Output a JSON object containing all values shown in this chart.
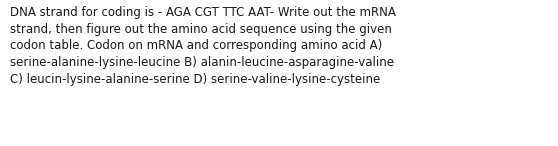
{
  "text": "DNA strand for coding is - AGA CGT TTC AAT- Write out the mRNA\nstrand, then figure out the amino acid sequence using the given\ncodon table. Codon on mRNA and corresponding amino acid A)\nserine-alanine-lysine-leucine B) alanin-leucine-asparagine-valine\nC) leucin-lysine-alanine-serine D) serine-valine-lysine-cysteine",
  "background_color": "#ffffff",
  "text_color": "#1a1a1a",
  "font_size": 8.5,
  "fig_width": 5.58,
  "fig_height": 1.46,
  "dpi": 100
}
